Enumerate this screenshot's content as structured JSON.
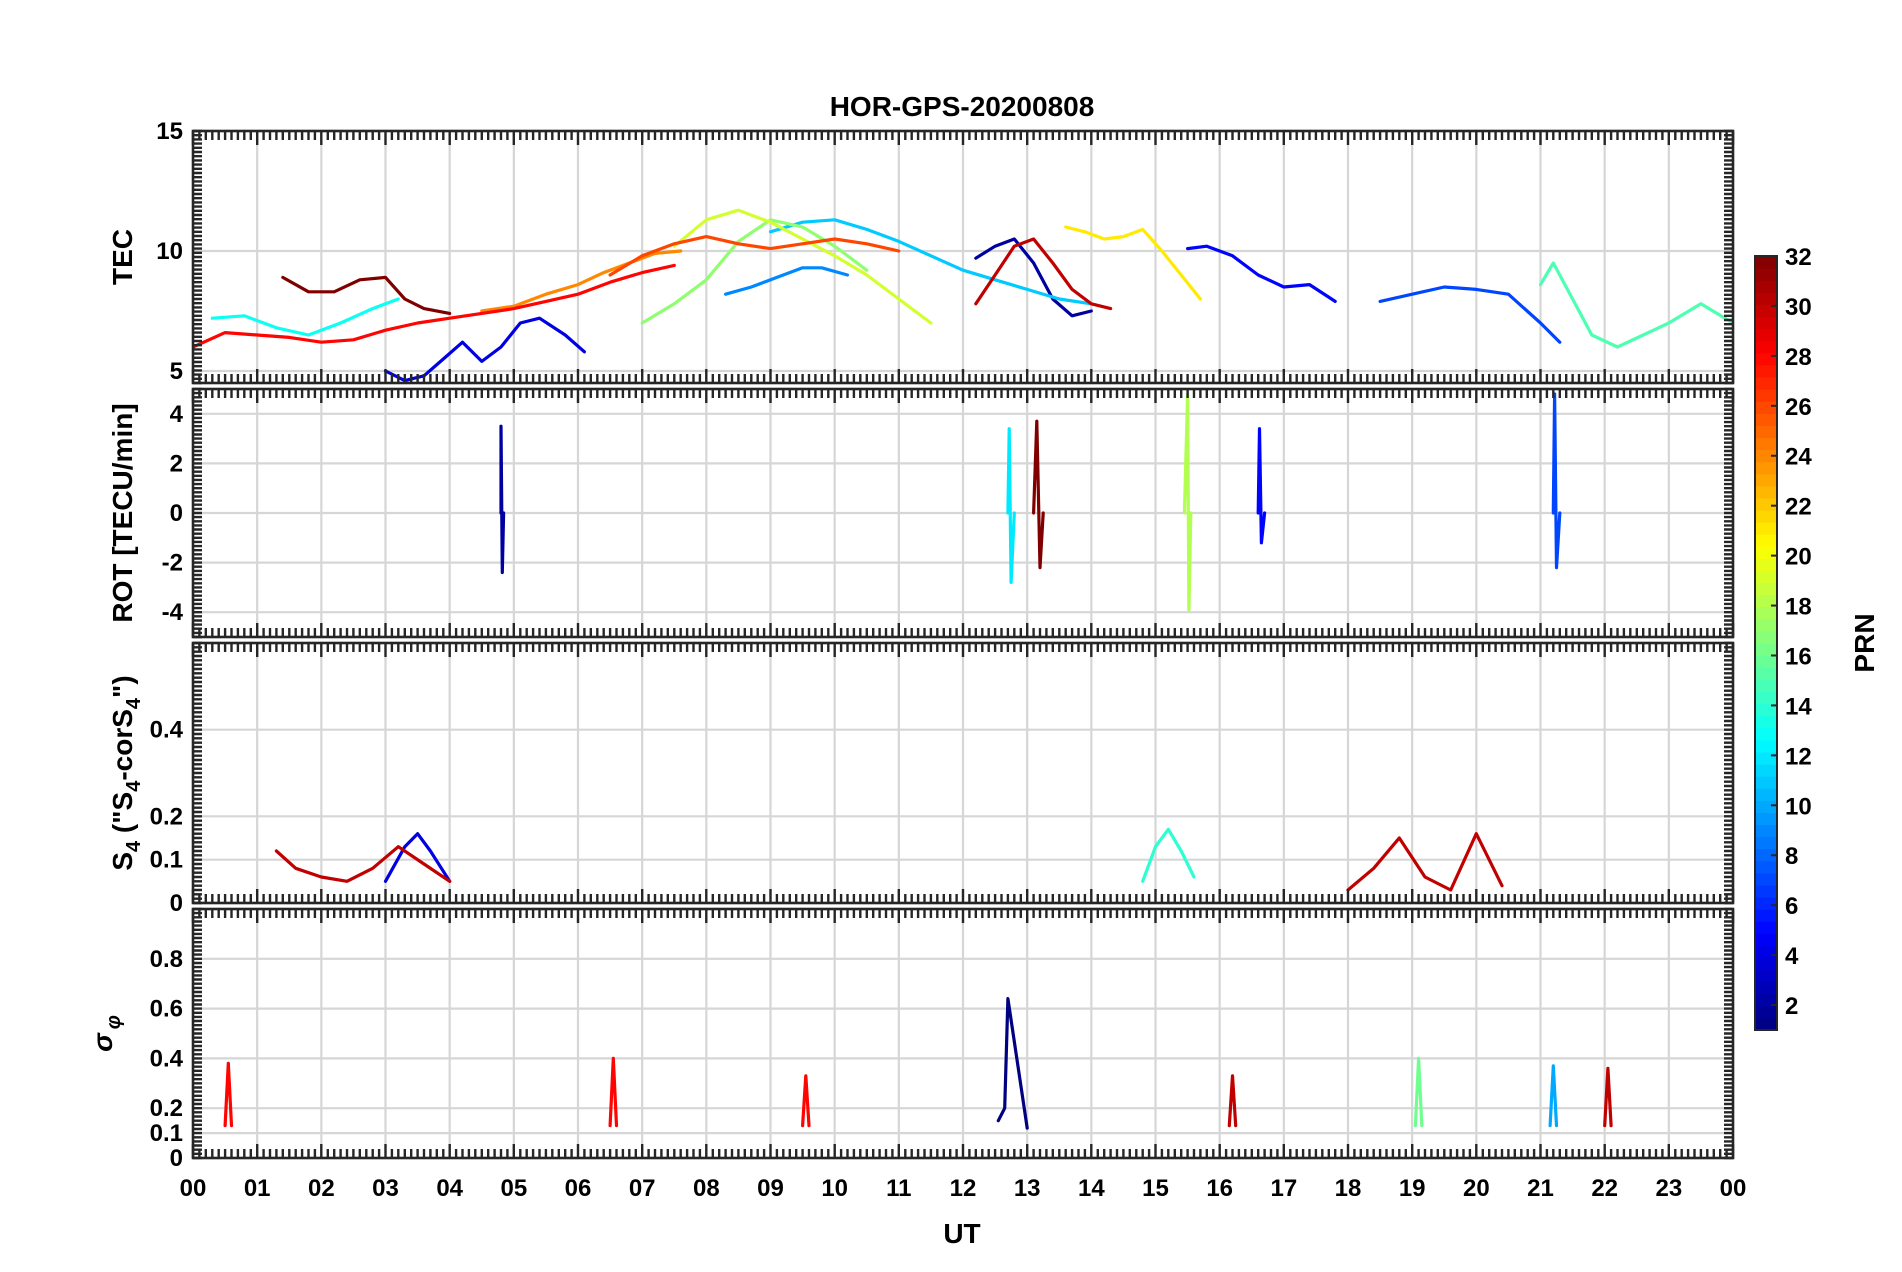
{
  "chart_data": {
    "type": "line",
    "title": "HOR-GPS-20200808",
    "xlabel": "UT",
    "xlim": [
      0,
      24
    ],
    "x_tick_labels": [
      "00",
      "01",
      "02",
      "03",
      "04",
      "05",
      "06",
      "07",
      "08",
      "09",
      "10",
      "11",
      "12",
      "13",
      "14",
      "15",
      "16",
      "17",
      "18",
      "19",
      "20",
      "21",
      "22",
      "23",
      "00"
    ],
    "grid": true,
    "panels": [
      {
        "id": "tec",
        "ylabel": "TEC",
        "ylim": [
          4.5,
          15
        ],
        "yticks": [
          5,
          10,
          15
        ],
        "ytick_labels": [
          "5",
          "10",
          "15"
        ],
        "series": [
          {
            "prn": 2,
            "x": [
              12.2,
              12.5,
              12.8,
              13.1,
              13.4,
              13.7,
              14.0
            ],
            "y": [
              9.7,
              10.2,
              10.5,
              9.5,
              8.0,
              7.3,
              7.5
            ]
          },
          {
            "prn": 4,
            "x": [
              3.0,
              3.3,
              3.6,
              3.9,
              4.2,
              4.5,
              4.8,
              5.1,
              5.4,
              5.8,
              6.1
            ],
            "y": [
              5.0,
              4.6,
              4.8,
              5.5,
              6.2,
              5.4,
              6.0,
              7.0,
              7.2,
              6.5,
              5.8
            ]
          },
          {
            "prn": 5,
            "x": [
              15.5,
              15.8,
              16.2,
              16.6,
              17.0,
              17.4,
              17.8
            ],
            "y": [
              10.1,
              10.2,
              9.8,
              9.0,
              8.5,
              8.6,
              7.9
            ]
          },
          {
            "prn": 7,
            "x": [
              18.5,
              19.0,
              19.5,
              20.0,
              20.5,
              21.0,
              21.3
            ],
            "y": [
              7.9,
              8.2,
              8.5,
              8.4,
              8.2,
              7.0,
              6.2
            ]
          },
          {
            "prn": 9,
            "x": [
              8.3,
              8.7,
              9.1,
              9.5,
              9.8,
              10.2
            ],
            "y": [
              8.2,
              8.5,
              8.9,
              9.3,
              9.3,
              9.0
            ]
          },
          {
            "prn": 11,
            "x": [
              9.0,
              9.5,
              10.0,
              10.5,
              11.0,
              11.5,
              12.0,
              12.5,
              13.0,
              13.5,
              14.0
            ],
            "y": [
              10.8,
              11.2,
              11.3,
              10.9,
              10.4,
              9.8,
              9.2,
              8.8,
              8.4,
              8.0,
              7.8
            ]
          },
          {
            "prn": 13,
            "x": [
              0.3,
              0.8,
              1.3,
              1.8,
              2.3,
              2.8,
              3.2
            ],
            "y": [
              7.2,
              7.3,
              6.8,
              6.5,
              7.0,
              7.6,
              8.0
            ]
          },
          {
            "prn": 15,
            "x": [
              21.0,
              21.2,
              21.5,
              21.8,
              22.2,
              22.6,
              23.0,
              23.5,
              24.0
            ],
            "y": [
              8.6,
              9.5,
              8.0,
              6.5,
              6.0,
              6.5,
              7.0,
              7.8,
              7.0
            ]
          },
          {
            "prn": 17,
            "x": [
              7.0,
              7.5,
              8.0,
              8.5,
              9.0,
              9.5,
              10.0,
              10.5
            ],
            "y": [
              7.0,
              7.8,
              8.8,
              10.4,
              11.3,
              11.0,
              10.2,
              9.2
            ]
          },
          {
            "prn": 19,
            "x": [
              7.5,
              8.0,
              8.5,
              9.0,
              9.5,
              10.0,
              10.5,
              11.0,
              11.5
            ],
            "y": [
              10.2,
              11.3,
              11.7,
              11.2,
              10.5,
              9.8,
              9.0,
              8.0,
              7.0
            ]
          },
          {
            "prn": 21,
            "x": [
              13.6,
              13.9,
              14.2,
              14.5,
              14.8,
              15.1,
              15.4,
              15.7
            ],
            "y": [
              11.0,
              10.8,
              10.5,
              10.6,
              10.9,
              10.0,
              9.0,
              8.0
            ]
          },
          {
            "prn": 24,
            "x": [
              4.5,
              5.0,
              5.5,
              6.0,
              6.4,
              6.8,
              7.2,
              7.6
            ],
            "y": [
              7.5,
              7.7,
              8.2,
              8.6,
              9.1,
              9.5,
              9.9,
              10.0
            ]
          },
          {
            "prn": 26,
            "x": [
              6.5,
              7.0,
              7.5,
              8.0,
              8.5,
              9.0,
              9.5,
              10.0,
              10.5,
              11.0
            ],
            "y": [
              9.0,
              9.8,
              10.3,
              10.6,
              10.3,
              10.1,
              10.3,
              10.5,
              10.3,
              10.0
            ]
          },
          {
            "prn": 28,
            "x": [
              0.0,
              0.5,
              1.0,
              1.5,
              2.0,
              2.5,
              3.0,
              3.5,
              4.0,
              4.5,
              5.0,
              5.5,
              6.0,
              6.5,
              7.0,
              7.5
            ],
            "y": [
              6.0,
              6.6,
              6.5,
              6.4,
              6.2,
              6.3,
              6.7,
              7.0,
              7.2,
              7.4,
              7.6,
              7.9,
              8.2,
              8.7,
              9.1,
              9.4
            ]
          },
          {
            "prn": 30,
            "x": [
              12.2,
              12.5,
              12.8,
              13.1,
              13.4,
              13.7,
              14.0,
              14.3
            ],
            "y": [
              7.8,
              9.0,
              10.2,
              10.5,
              9.5,
              8.4,
              7.8,
              7.6
            ]
          },
          {
            "prn": 32,
            "x": [
              1.4,
              1.8,
              2.2,
              2.6,
              3.0,
              3.3,
              3.6,
              4.0
            ],
            "y": [
              8.9,
              8.3,
              8.3,
              8.8,
              8.9,
              8.0,
              7.6,
              7.4
            ]
          }
        ]
      },
      {
        "id": "rot",
        "ylabel": "ROT [TECU/min]",
        "ylim": [
          -5,
          5
        ],
        "yticks": [
          -4,
          -2,
          0,
          2,
          4
        ],
        "ytick_labels": [
          "-4",
          "-2",
          "0",
          "2",
          "4"
        ],
        "series": [
          {
            "prn": 2,
            "x": [
              4.8,
              4.8,
              4.82,
              4.84
            ],
            "y": [
              0,
              3.5,
              -2.4,
              0
            ]
          },
          {
            "prn": 5,
            "x": [
              16.6,
              16.62,
              16.65,
              16.7
            ],
            "y": [
              0,
              3.4,
              -1.2,
              0
            ]
          },
          {
            "prn": 7,
            "x": [
              21.2,
              21.22,
              21.25,
              21.3
            ],
            "y": [
              0,
              4.8,
              -2.2,
              0
            ]
          },
          {
            "prn": 12,
            "x": [
              12.7,
              12.72,
              12.75,
              12.8
            ],
            "y": [
              0,
              3.4,
              -2.8,
              0
            ]
          },
          {
            "prn": 18,
            "x": [
              15.45,
              15.5,
              15.52,
              15.55
            ],
            "y": [
              0,
              4.8,
              -3.9,
              0
            ]
          },
          {
            "prn": 32,
            "x": [
              13.1,
              13.15,
              13.2,
              13.25
            ],
            "y": [
              0,
              3.7,
              -2.2,
              0
            ]
          }
        ]
      },
      {
        "id": "s4",
        "ylabel": "S4 (\"S4-corS4\")",
        "ylabel_main": "S",
        "ylabel_sub1": "4",
        "ylabel_mid": " (\"S",
        "ylabel_sub2": "4",
        "ylabel_mid2": "-corS",
        "ylabel_sub3": "4",
        "ylabel_end": "\")",
        "ylim": [
          0,
          0.6
        ],
        "yticks": [
          0,
          0.1,
          0.2,
          0.4
        ],
        "ytick_labels": [
          "0",
          "0.1",
          "0.2",
          "0.4"
        ],
        "series": [
          {
            "prn": 4,
            "x": [
              3.0,
              3.3,
              3.5,
              3.7,
              4.0
            ],
            "y": [
              0.05,
              0.13,
              0.16,
              0.12,
              0.05
            ]
          },
          {
            "prn": 14,
            "x": [
              14.8,
              15.0,
              15.2,
              15.4,
              15.6
            ],
            "y": [
              0.05,
              0.13,
              0.17,
              0.12,
              0.06
            ]
          },
          {
            "prn": 30,
            "x": [
              1.3,
              1.6,
              2.0,
              2.4,
              2.8,
              3.2,
              3.6,
              4.0
            ],
            "y": [
              0.12,
              0.08,
              0.06,
              0.05,
              0.08,
              0.13,
              0.09,
              0.05
            ]
          },
          {
            "prn": 30,
            "x": [
              18.0,
              18.4,
              18.8,
              19.2,
              19.6,
              20.0,
              20.4
            ],
            "y": [
              0.03,
              0.08,
              0.15,
              0.06,
              0.03,
              0.16,
              0.04
            ]
          }
        ]
      },
      {
        "id": "sigma_phi",
        "ylabel": "σ φ",
        "ylabel_main": "σ",
        "ylabel_sub": "φ",
        "ylim": [
          0,
          1.0
        ],
        "yticks": [
          0,
          0.1,
          0.2,
          0.4,
          0.6,
          0.8
        ],
        "ytick_labels": [
          "0",
          "0.1",
          "0.2",
          "0.4",
          "0.6",
          "0.8"
        ],
        "series": [
          {
            "prn": 1,
            "x": [
              12.55,
              12.65,
              12.7,
              13.0
            ],
            "y": [
              0.15,
              0.2,
              0.64,
              0.12
            ]
          },
          {
            "prn": 28,
            "x": [
              0.5,
              0.55,
              0.6
            ],
            "y": [
              0.13,
              0.38,
              0.13
            ]
          },
          {
            "prn": 28,
            "x": [
              6.5,
              6.55,
              6.6
            ],
            "y": [
              0.13,
              0.4,
              0.13
            ]
          },
          {
            "prn": 28,
            "x": [
              9.5,
              9.55,
              9.6
            ],
            "y": [
              0.13,
              0.33,
              0.13
            ]
          },
          {
            "prn": 16,
            "x": [
              19.05,
              19.1,
              19.15
            ],
            "y": [
              0.13,
              0.4,
              0.13
            ]
          },
          {
            "prn": 10,
            "x": [
              21.15,
              21.2,
              21.25
            ],
            "y": [
              0.13,
              0.37,
              0.13
            ]
          },
          {
            "prn": 30,
            "x": [
              22.0,
              22.05,
              22.1
            ],
            "y": [
              0.13,
              0.36,
              0.13
            ]
          },
          {
            "prn": 30,
            "x": [
              16.15,
              16.2,
              16.25
            ],
            "y": [
              0.13,
              0.33,
              0.13
            ]
          }
        ]
      }
    ],
    "colorbar": {
      "label": "PRN",
      "range": [
        1,
        32
      ],
      "ticks": [
        2,
        4,
        6,
        8,
        10,
        12,
        14,
        16,
        18,
        20,
        22,
        24,
        26,
        28,
        30,
        32
      ],
      "tick_labels": [
        "2",
        "4",
        "6",
        "8",
        "10",
        "12",
        "14",
        "16",
        "18",
        "20",
        "22",
        "24",
        "26",
        "28",
        "30",
        "32"
      ],
      "colormap": "jet"
    }
  }
}
